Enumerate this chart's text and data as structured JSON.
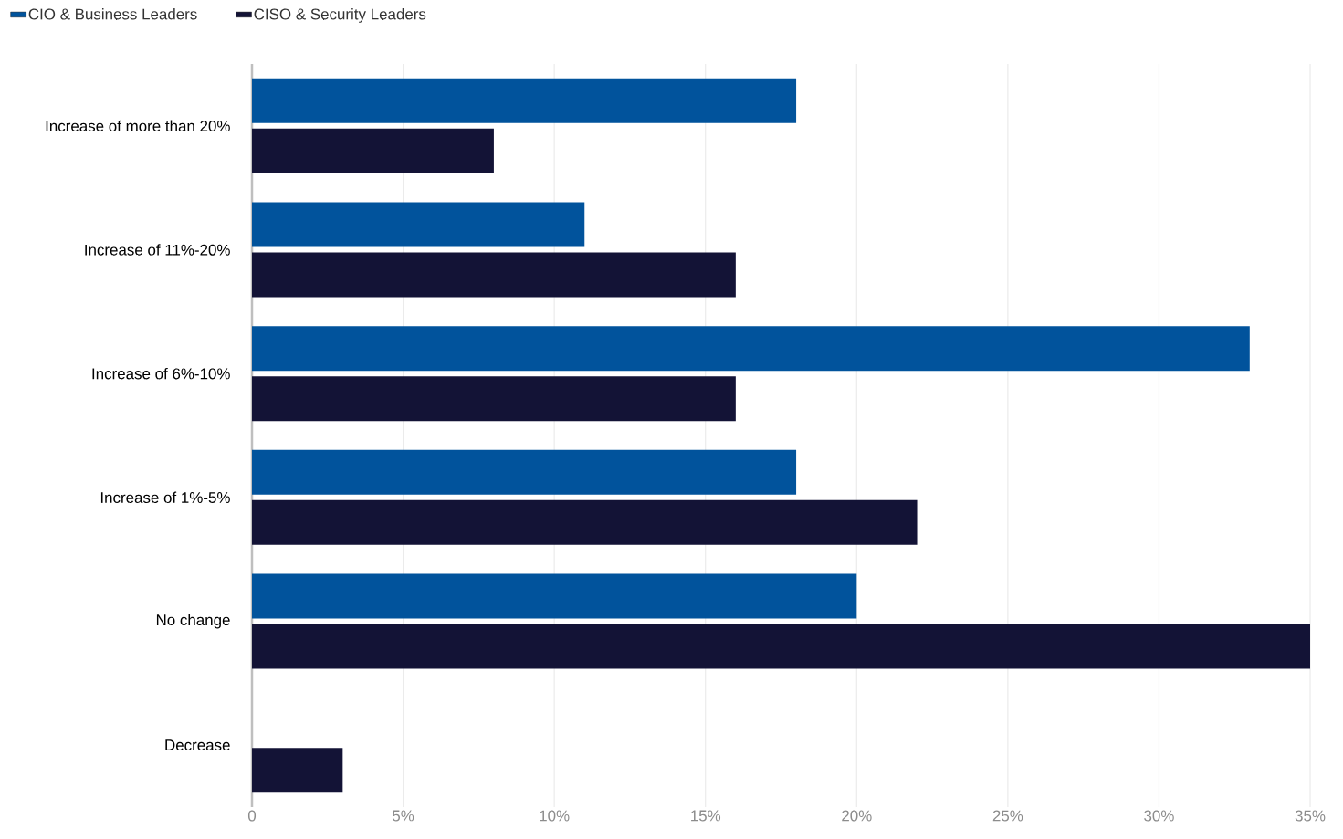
{
  "chart_data": {
    "type": "bar",
    "orientation": "horizontal",
    "categories": [
      "Increase of more than 20%",
      "Increase of 11%-20%",
      "Increase of 6%-10%",
      "Increase of 1%-5%",
      "No change",
      "Decrease"
    ],
    "series": [
      {
        "name": "CIO & Business Leaders",
        "color": "#01539c",
        "values": [
          18,
          11,
          33,
          18,
          20,
          0
        ]
      },
      {
        "name": "CISO & Security Leaders",
        "color": "#131336",
        "values": [
          8,
          16,
          16,
          22,
          35,
          3
        ]
      }
    ],
    "xlim": [
      0,
      35
    ],
    "xticks": [
      0,
      {
        "value": 5,
        "label": "5%"
      },
      {
        "value": 10,
        "label": "10%"
      },
      {
        "value": 15,
        "label": "15%"
      },
      {
        "value": 20,
        "label": "20%"
      },
      {
        "value": 25,
        "label": "25%"
      },
      {
        "value": 30,
        "label": "30%"
      },
      {
        "value": 35,
        "label": "35%"
      }
    ],
    "grid": "x",
    "legend": "top"
  }
}
